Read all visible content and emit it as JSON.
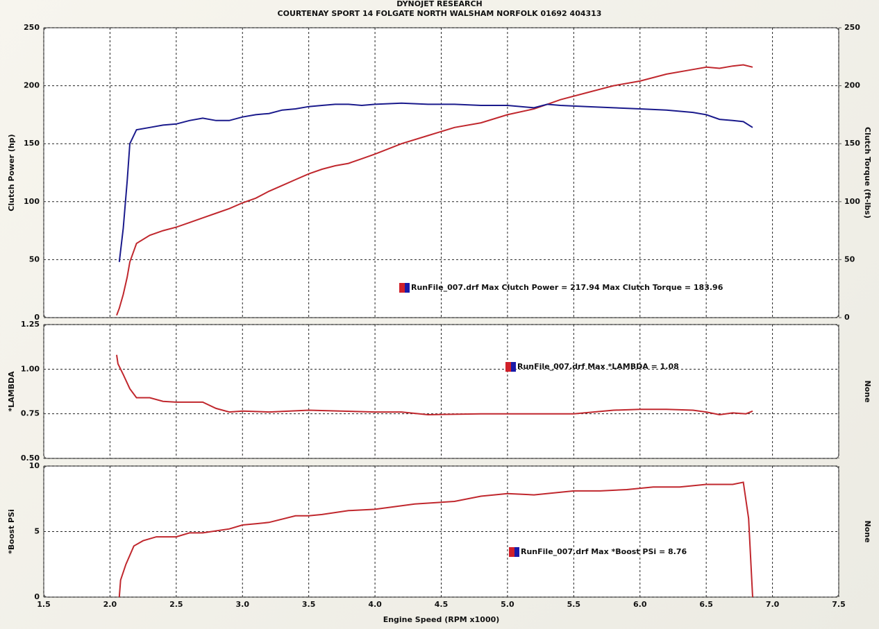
{
  "chart_data": [
    {
      "type": "line",
      "title": "DYNOJET RESEARCH",
      "subtitle": "COURTENAY SPORT 14 FOLGATE NORTH WALSHAM NORFOLK 01692 404313",
      "ylabel": "Clutch Power (hp)",
      "y2label": "Clutch Torque (ft-lbs)",
      "ylim": [
        0,
        250
      ],
      "yticks": [
        0,
        50,
        100,
        150,
        200,
        250
      ],
      "y2lim": [
        0,
        250
      ],
      "y2ticks": [
        0,
        50,
        100,
        150,
        200,
        250
      ],
      "grid": true,
      "annotation": "RunFile_007.drf Max Clutch Power = 217.94 Max Clutch Torque = 183.96",
      "x": [
        2.05,
        2.07,
        2.1,
        2.13,
        2.15,
        2.2,
        2.3,
        2.4,
        2.5,
        2.6,
        2.7,
        2.8,
        2.9,
        3.0,
        3.1,
        3.2,
        3.3,
        3.4,
        3.5,
        3.6,
        3.7,
        3.8,
        3.9,
        4.0,
        4.2,
        4.4,
        4.6,
        4.8,
        5.0,
        5.2,
        5.3,
        5.4,
        5.6,
        5.8,
        6.0,
        6.2,
        6.4,
        6.5,
        6.6,
        6.7,
        6.78,
        6.85
      ],
      "series": [
        {
          "color": "#c0272d",
          "values": [
            2,
            8,
            20,
            35,
            48,
            64,
            71,
            75,
            78,
            82,
            86,
            90,
            94,
            99,
            103,
            109,
            114,
            119,
            124,
            128,
            131,
            133,
            137,
            141,
            150,
            157,
            164,
            168,
            175,
            180,
            184,
            188,
            194,
            200,
            204,
            210,
            214,
            216,
            215,
            217,
            218,
            216
          ]
        },
        {
          "color": "#1a1a8c",
          "axis": "y2",
          "values": [
            null,
            48,
            77,
            118,
            150,
            162,
            164,
            166,
            167,
            170,
            172,
            170,
            170,
            173,
            175,
            176,
            179,
            180,
            182,
            183,
            184,
            184,
            183,
            184,
            185,
            184,
            184,
            183,
            183,
            181,
            184,
            183,
            182,
            181,
            180,
            179,
            177,
            175,
            171,
            170,
            169,
            164
          ]
        }
      ]
    },
    {
      "type": "line",
      "ylabel": "*LAMBDA",
      "y2label": "None",
      "ylim": [
        0.5,
        1.25
      ],
      "yticks": [
        {
          "value": 0.5,
          "label": "0.50"
        },
        {
          "value": 0.75,
          "label": "0.75"
        },
        {
          "value": 1.0,
          "label": "1.00"
        },
        {
          "value": 1.25,
          "label": "1.25"
        }
      ],
      "grid": true,
      "annotation": "RunFile_007.drf Max *LAMBDA = 1.08",
      "x": [
        2.05,
        2.06,
        2.1,
        2.15,
        2.2,
        2.3,
        2.4,
        2.5,
        2.7,
        2.8,
        2.9,
        3.0,
        3.2,
        3.5,
        4.0,
        4.2,
        4.4,
        4.8,
        5.0,
        5.5,
        5.8,
        6.0,
        6.2,
        6.4,
        6.5,
        6.6,
        6.7,
        6.8,
        6.85
      ],
      "series": [
        {
          "color": "#c0272d",
          "values": [
            1.08,
            1.03,
            0.97,
            0.89,
            0.84,
            0.84,
            0.82,
            0.815,
            0.815,
            0.78,
            0.76,
            0.765,
            0.76,
            0.77,
            0.76,
            0.76,
            0.745,
            0.75,
            0.75,
            0.75,
            0.77,
            0.775,
            0.775,
            0.77,
            0.76,
            0.745,
            0.755,
            0.75,
            0.765
          ]
        }
      ]
    },
    {
      "type": "line",
      "ylabel": "*Boost PSi",
      "y2label": "None",
      "xlabel": "Engine Speed (RPM x1000)",
      "ylim": [
        0,
        10
      ],
      "yticks": [
        0,
        5,
        10
      ],
      "xlim": [
        1.5,
        7.5
      ],
      "xticks": [
        1.5,
        {
          "value": 2,
          "label": "2.0"
        },
        2.5,
        {
          "value": 3,
          "label": "3.0"
        },
        3.5,
        {
          "value": 4,
          "label": "4.0"
        },
        4.5,
        {
          "value": 5,
          "label": "5.0"
        },
        5.5,
        {
          "value": 6,
          "label": "6.0"
        },
        6.5,
        {
          "value": 7,
          "label": "7.0"
        },
        7.5
      ],
      "grid": true,
      "annotation": "RunFile_007.drf Max *Boost PSi = 8.76",
      "x": [
        2.07,
        2.08,
        2.12,
        2.18,
        2.25,
        2.35,
        2.5,
        2.6,
        2.7,
        2.9,
        3.0,
        3.1,
        3.2,
        3.4,
        3.5,
        3.6,
        3.8,
        4.0,
        4.3,
        4.6,
        4.8,
        5.0,
        5.2,
        5.5,
        5.7,
        5.9,
        6.1,
        6.3,
        6.5,
        6.7,
        6.78,
        6.82,
        6.85
      ],
      "series": [
        {
          "color": "#c0272d",
          "values": [
            0,
            1.3,
            2.5,
            3.9,
            4.3,
            4.6,
            4.6,
            4.9,
            4.9,
            5.2,
            5.5,
            5.6,
            5.7,
            6.2,
            6.2,
            6.3,
            6.6,
            6.7,
            7.1,
            7.3,
            7.7,
            7.9,
            7.8,
            8.1,
            8.1,
            8.2,
            8.4,
            8.4,
            8.6,
            8.6,
            8.76,
            6,
            0
          ]
        }
      ]
    }
  ]
}
